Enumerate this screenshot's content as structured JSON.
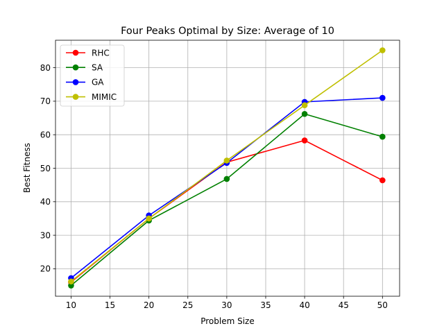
{
  "chart_data": {
    "type": "line",
    "title": "Four Peaks Optimal by Size: Average of 10",
    "xlabel": "Problem Size",
    "ylabel": "Best Fitness",
    "x": [
      10,
      20,
      30,
      40,
      50
    ],
    "xlim": [
      8,
      52.2
    ],
    "ylim": [
      11.8,
      88.2
    ],
    "xticks": [
      10,
      15,
      20,
      25,
      30,
      35,
      40,
      45,
      50
    ],
    "yticks": [
      20,
      30,
      40,
      50,
      60,
      70,
      80
    ],
    "grid": true,
    "legend_position": "top-left",
    "series": [
      {
        "name": "RHC",
        "color": "#ff0000",
        "values": [
          16.0,
          35.0,
          51.8,
          58.3,
          46.4
        ]
      },
      {
        "name": "SA",
        "color": "#008000",
        "values": [
          15.0,
          34.4,
          46.8,
          66.2,
          59.4
        ]
      },
      {
        "name": "GA",
        "color": "#0000ff",
        "values": [
          17.2,
          35.9,
          51.6,
          69.8,
          71.0
        ]
      },
      {
        "name": "MIMIC",
        "color": "#bfbf00",
        "values": [
          16.2,
          35.0,
          52.3,
          68.8,
          85.2
        ]
      }
    ]
  }
}
